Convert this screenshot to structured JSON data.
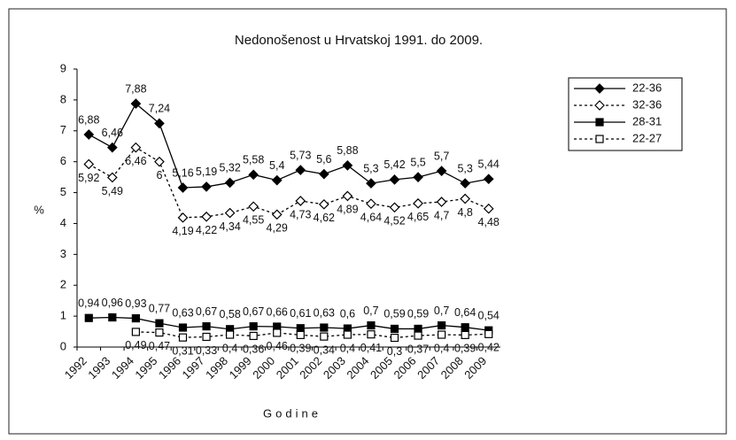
{
  "chart_data": {
    "type": "line",
    "title": "Nedonošenost u Hrvatskoj 1991. do 2009.",
    "x_label": "Godine",
    "y_label": "%",
    "categories": [
      "1992",
      "1993",
      "1994",
      "1995",
      "1996",
      "1997",
      "1998",
      "1999",
      "2000",
      "2001",
      "2002",
      "2003",
      "2004",
      "2005",
      "2006",
      "2007",
      "2008",
      "2009"
    ],
    "ylim": [
      0,
      9
    ],
    "yticks": [
      0,
      1,
      2,
      3,
      4,
      5,
      6,
      7,
      8,
      9
    ],
    "grid": false,
    "legend": "top-right",
    "series": [
      {
        "name": "22-36",
        "color": "#000000",
        "marker": "diamond",
        "filled": true,
        "line_style": "solid",
        "label_side": "above",
        "values": [
          6.88,
          6.46,
          7.88,
          7.24,
          5.16,
          5.19,
          5.32,
          5.58,
          5.4,
          5.73,
          5.6,
          5.88,
          5.3,
          5.42,
          5.5,
          5.7,
          5.3,
          5.44
        ],
        "value_labels": [
          "6,88",
          "6,46",
          "7,88",
          "7,24",
          "5,16",
          "5,19",
          "5,32",
          "5,58",
          "5,4",
          "5,73",
          "5,6",
          "5,88",
          "5,3",
          "5,42",
          "5,5",
          "5,7",
          "5,3",
          "5,44"
        ]
      },
      {
        "name": "32-36",
        "color": "#000000",
        "marker": "diamond",
        "filled": false,
        "line_style": "dotted",
        "label_side": "below",
        "values": [
          5.92,
          5.49,
          6.46,
          6,
          4.19,
          4.22,
          4.34,
          4.55,
          4.29,
          4.73,
          4.62,
          4.89,
          4.64,
          4.52,
          4.65,
          4.7,
          4.8,
          4.48
        ],
        "value_labels": [
          "5,92",
          "5,49",
          "6,46",
          "6",
          "4,19",
          "4,22",
          "4,34",
          "4,55",
          "4,29",
          "4,73",
          "4,62",
          "4,89",
          "4,64",
          "4,52",
          "4,65",
          "4,7",
          "4,8",
          "4,48"
        ]
      },
      {
        "name": "28-31",
        "color": "#000000",
        "marker": "square",
        "filled": true,
        "line_style": "solid",
        "label_side": "above",
        "values": [
          0.94,
          0.96,
          0.93,
          0.77,
          0.63,
          0.67,
          0.58,
          0.67,
          0.66,
          0.61,
          0.63,
          0.6,
          0.7,
          0.59,
          0.59,
          0.7,
          0.64,
          0.54
        ],
        "value_labels": [
          "0,94",
          "0,96",
          "0,93",
          "0,77",
          "0,63",
          "0,67",
          "0,58",
          "0,67",
          "0,66",
          "0,61",
          "0,63",
          "0,6",
          "0,7",
          "0,59",
          "0,59",
          "0,7",
          "0,64",
          "0,54"
        ]
      },
      {
        "name": "22-27",
        "color": "#000000",
        "marker": "square",
        "filled": false,
        "line_style": "dotted",
        "label_side": "below",
        "values": [
          null,
          null,
          0.49,
          0.47,
          0.31,
          0.33,
          0.4,
          0.36,
          0.46,
          0.39,
          0.34,
          0.4,
          0.41,
          0.3,
          0.37,
          0.4,
          0.39,
          0.42
        ],
        "value_labels": [
          null,
          null,
          "0,49",
          "0,47",
          "0,31",
          "0,33",
          "0,4",
          "0,36",
          "0,46",
          "0,39",
          "0,34",
          "0,4",
          "0,41",
          "0,3",
          "0,37",
          "0,4",
          "0,39",
          "0,42"
        ]
      }
    ]
  }
}
